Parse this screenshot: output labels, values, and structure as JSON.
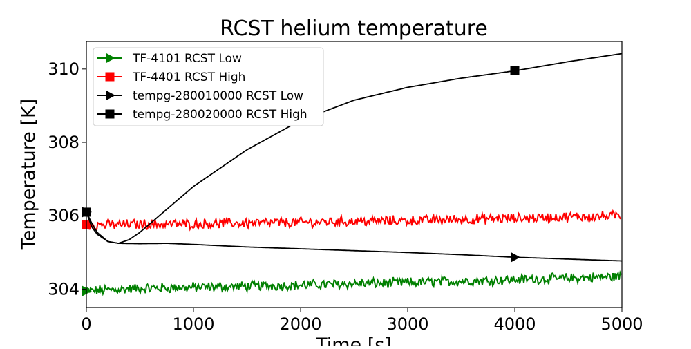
{
  "chart_data": {
    "type": "line",
    "title": "RCST helium temperature",
    "xlabel": "Time [s]",
    "ylabel": "Temperature [K]",
    "xlim": [
      0,
      5000
    ],
    "ylim": [
      303.5,
      310.75
    ],
    "xticks": [
      0,
      1000,
      2000,
      3000,
      4000,
      5000
    ],
    "yticks": [
      304,
      306,
      308,
      310
    ],
    "xtick_labels": [
      "0",
      "1000",
      "2000",
      "3000",
      "4000",
      "5000"
    ],
    "ytick_labels": [
      "304",
      "306",
      "308",
      "310"
    ],
    "grid": false,
    "legend_position": "top-left",
    "series": [
      {
        "name": "TF-4101 RCST Low",
        "color": "#008000",
        "marker": "triangle-right",
        "noisy": true,
        "x": [
          0,
          500,
          1000,
          1500,
          2000,
          2500,
          3000,
          3500,
          4000,
          4500,
          5000
        ],
        "y": [
          303.95,
          304.02,
          304.05,
          304.08,
          304.11,
          304.15,
          304.18,
          304.22,
          304.26,
          304.3,
          304.35
        ]
      },
      {
        "name": "TF-4401 RCST High",
        "color": "#ff0000",
        "marker": "square",
        "noisy": true,
        "x": [
          0,
          500,
          1000,
          1500,
          2000,
          2500,
          3000,
          3500,
          4000,
          4500,
          5000
        ],
        "y": [
          305.75,
          305.77,
          305.78,
          305.8,
          305.82,
          305.85,
          305.87,
          305.9,
          305.93,
          305.97,
          306.0
        ]
      },
      {
        "name": "tempg-280010000 RCST Low",
        "color": "#000000",
        "marker": "triangle-right",
        "noisy": false,
        "x": [
          0,
          50,
          100,
          200,
          300,
          500,
          750,
          1000,
          1500,
          2000,
          2500,
          3000,
          3500,
          4000,
          4500,
          5000
        ],
        "y": [
          306.1,
          305.7,
          305.5,
          305.3,
          305.25,
          305.24,
          305.25,
          305.22,
          305.15,
          305.1,
          305.05,
          305.0,
          304.94,
          304.87,
          304.82,
          304.77
        ]
      },
      {
        "name": "tempg-280020000 RCST High",
        "color": "#000000",
        "marker": "square",
        "noisy": false,
        "x": [
          0,
          50,
          100,
          200,
          300,
          400,
          500,
          600,
          800,
          1000,
          1500,
          2000,
          2500,
          3000,
          3500,
          4000,
          4500,
          5000
        ],
        "y": [
          306.1,
          305.8,
          305.55,
          305.3,
          305.25,
          305.35,
          305.55,
          305.8,
          306.3,
          306.8,
          307.8,
          308.6,
          309.15,
          309.5,
          309.75,
          309.95,
          310.2,
          310.42
        ]
      }
    ]
  }
}
